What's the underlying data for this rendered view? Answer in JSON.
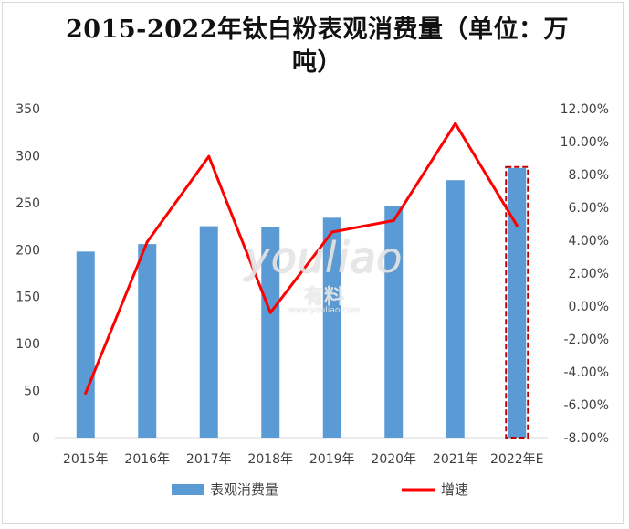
{
  "chart_data": {
    "type": "bar",
    "title": "2015-2022年钛白粉表观消费量（单位：万吨）",
    "title_lines": [
      "2015-2022年钛白粉表观消费量（单位：万",
      "吨）"
    ],
    "categories": [
      "2015年",
      "2016年",
      "2017年",
      "2018年",
      "2019年",
      "2020年",
      "2021年",
      "2022年E"
    ],
    "series": [
      {
        "name": "表观消费量",
        "type": "bar",
        "axis": "left",
        "color": "#5b9bd5",
        "values": [
          198,
          206,
          225,
          224,
          234,
          246,
          274,
          287
        ]
      },
      {
        "name": "增速",
        "type": "line",
        "axis": "right",
        "color": "#ff0000",
        "values": [
          -5.3,
          3.9,
          9.1,
          -0.4,
          4.5,
          5.2,
          11.1,
          4.9
        ]
      }
    ],
    "y_left": {
      "min": 0,
      "max": 350,
      "step": 50,
      "ticks": [
        "0",
        "50",
        "100",
        "150",
        "200",
        "250",
        "300",
        "350"
      ]
    },
    "y_right": {
      "min": -8,
      "max": 12,
      "step": 2,
      "ticks": [
        "-8.00%",
        "-6.00%",
        "-4.00%",
        "-2.00%",
        "0.00%",
        "2.00%",
        "4.00%",
        "6.00%",
        "8.00%",
        "10.00%",
        "12.00%"
      ]
    },
    "highlight_category": "2022年E",
    "highlight_style": "dashed-red-outline",
    "grid": false,
    "legend_position": "bottom"
  },
  "watermark": {
    "latin": "youliao",
    "cjk": "有料",
    "url": "www.youliao.com"
  }
}
